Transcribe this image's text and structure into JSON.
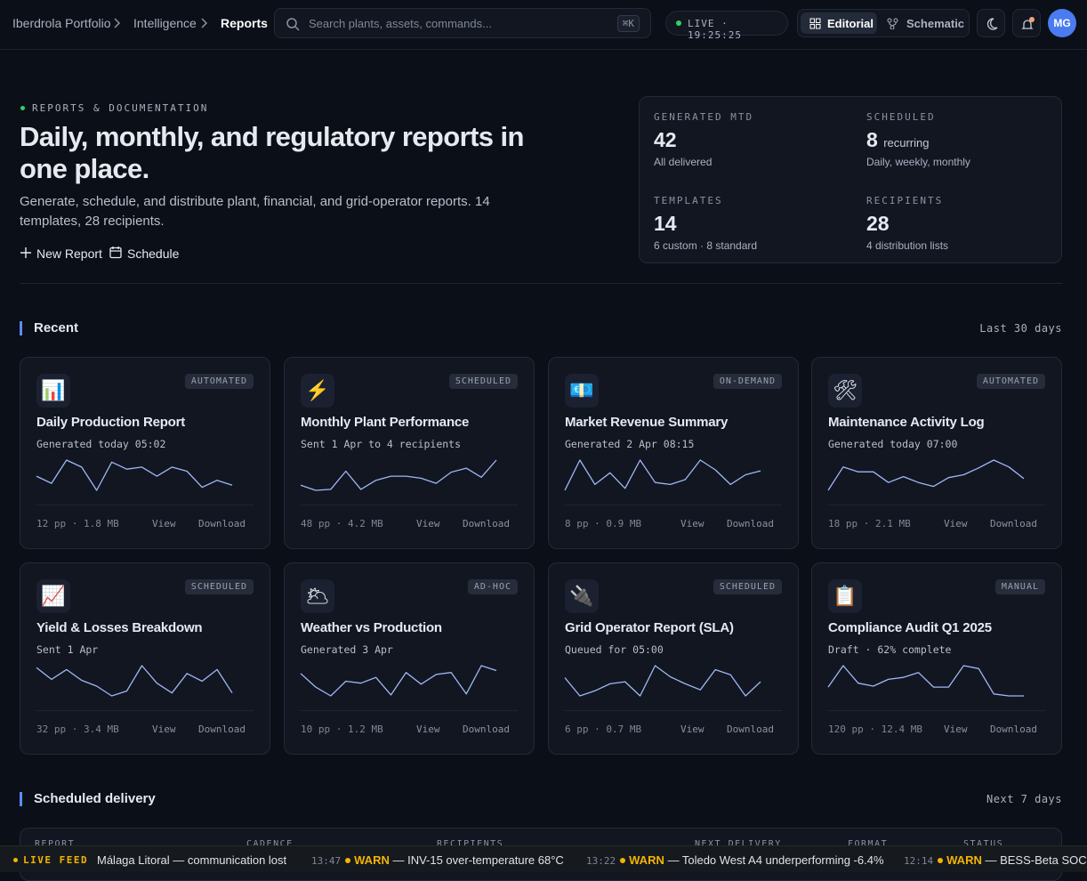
{
  "breadcrumb": [
    "Iberdrola Portfolio",
    "Intelligence",
    "Reports"
  ],
  "search": {
    "placeholder": "Search plants, assets, commands...",
    "shortcut": "⌘K"
  },
  "live": "LIVE · 19:25:25",
  "view_toggle": [
    "Editorial",
    "Schematic"
  ],
  "avatar": "MG",
  "hero": {
    "eyebrow": "REPORTS & DOCUMENTATION",
    "title": "Daily, monthly, and regulatory reports in one place.",
    "subtitle": "Generate, schedule, and distribute plant, financial, and grid-operator reports. 14 templates, 28 recipients.",
    "actions": [
      "New Report",
      "Schedule"
    ]
  },
  "stats": [
    {
      "label": "GENERATED MTD",
      "value": 42,
      "note": "All delivered"
    },
    {
      "label": "SCHEDULED",
      "value": 8,
      "unit": "recurring",
      "note": "Daily, weekly, monthly"
    },
    {
      "label": "TEMPLATES",
      "value": 14,
      "note": "6 custom · 8 standard"
    },
    {
      "label": "RECIPIENTS",
      "value": 28,
      "note": "4 distribution lists"
    }
  ],
  "recent": {
    "title": "Recent",
    "range": "Last 30 days",
    "actions": [
      "View",
      "Download"
    ],
    "cards": [
      {
        "icon": "📊",
        "badge": "AUTOMATED",
        "title": "Daily Production Report",
        "subtitle": "Generated today 05:02",
        "meta": "12 pp · 1.8 MB",
        "trend": [
          24,
          17,
          40,
          33,
          10,
          38,
          31,
          33,
          24,
          33,
          29,
          13,
          20,
          15
        ]
      },
      {
        "icon": "⚡",
        "badge": "SCHEDULED",
        "title": "Monthly Plant Performance",
        "subtitle": "Sent 1 Apr to 4 recipients",
        "meta": "48 pp · 4.2 MB",
        "trend": [
          15,
          10,
          11,
          29,
          11,
          20,
          24,
          24,
          22,
          17,
          28,
          32,
          23,
          40
        ]
      },
      {
        "icon": "💶",
        "badge": "ON-DEMAND",
        "title": "Market Revenue Summary",
        "subtitle": "Generated 2 Apr 08:15",
        "meta": "8 pp · 0.9 MB",
        "trend": [
          9,
          40,
          15,
          27,
          11,
          40,
          17,
          15,
          20,
          40,
          30,
          15,
          25,
          29
        ]
      },
      {
        "icon": "🛠",
        "badge": "AUTOMATED",
        "title": "Maintenance Activity Log",
        "subtitle": "Generated today 07:00",
        "meta": "18 pp · 2.1 MB",
        "trend": [
          9,
          33,
          28,
          28,
          17,
          23,
          17,
          13,
          22,
          25,
          32,
          40,
          33,
          21
        ]
      },
      {
        "icon": "📈",
        "badge": "SCHEDULED",
        "title": "Yield & Losses Breakdown",
        "subtitle": "Sent 1 Apr",
        "meta": "32 pp · 3.4 MB",
        "trend": [
          38,
          26,
          36,
          25,
          19,
          9,
          14,
          40,
          22,
          12,
          32,
          24,
          36,
          12
        ]
      },
      {
        "icon": "🌥",
        "badge": "AD-HOC",
        "title": "Weather vs Production",
        "subtitle": "Generated 3 Apr",
        "meta": "10 pp · 1.2 MB",
        "trend": [
          32,
          18,
          9,
          24,
          22,
          28,
          10,
          33,
          21,
          31,
          33,
          11,
          40,
          35
        ]
      },
      {
        "icon": "🔌",
        "badge": "SCHEDULED",
        "title": "Grid Operator Report (SLA)",
        "subtitle": "Queued for 05:00",
        "meta": "6 pp · 0.7 MB",
        "trend": [
          28,
          10,
          15,
          22,
          24,
          10,
          40,
          29,
          22,
          16,
          36,
          31,
          10,
          24
        ]
      },
      {
        "icon": "📋",
        "badge": "MANUAL",
        "title": "Compliance Audit Q1 2025",
        "subtitle": "Draft · 62% complete",
        "meta": "120 pp · 12.4 MB",
        "trend": [
          18,
          40,
          22,
          19,
          26,
          28,
          33,
          18,
          18,
          40,
          37,
          11,
          9,
          9
        ]
      }
    ]
  },
  "scheduled": {
    "title": "Scheduled delivery",
    "range": "Next 7 days",
    "columns": [
      "REPORT",
      "CADENCE",
      "RECIPIENTS",
      "NEXT DELIVERY",
      "FORMAT",
      "STATUS"
    ]
  },
  "feed": {
    "label": "LIVE FEED",
    "items": [
      {
        "text": "Málaga Litoral — communication lost"
      },
      {
        "time": "13:47",
        "level": "WARN",
        "text": "— INV-15 over-temperature 68°C"
      },
      {
        "time": "13:22",
        "level": "WARN",
        "text": "— Toledo West A4 underperforming -6.4%"
      },
      {
        "time": "12:14",
        "level": "WARN",
        "text": "— BESS-Beta SOC"
      }
    ]
  }
}
